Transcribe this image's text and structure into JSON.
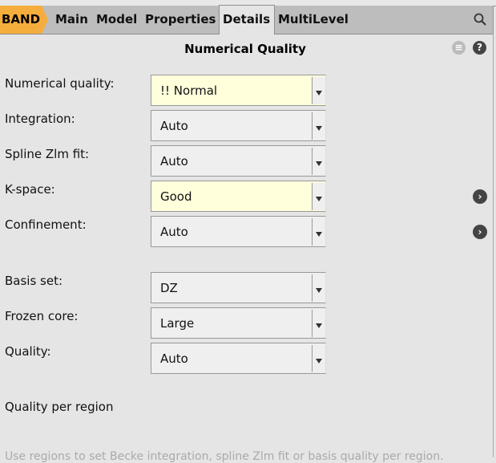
{
  "tabs": {
    "brand": "BAND",
    "items": [
      "Main",
      "Model",
      "Properties",
      "Details",
      "MultiLevel"
    ],
    "active": "Details"
  },
  "panel": {
    "title": "Numerical Quality"
  },
  "fields": [
    {
      "label": "Numerical quality:",
      "value": "!! Normal",
      "highlight": true
    },
    {
      "label": "Integration:",
      "value": "Auto",
      "highlight": false
    },
    {
      "label": "Spline Zlm fit:",
      "value": "Auto",
      "highlight": false
    },
    {
      "label": "K-space:",
      "value": "Good",
      "highlight": true,
      "details": true
    },
    {
      "label": "Confinement:",
      "value": "Auto",
      "highlight": false,
      "details": true
    },
    {
      "label": "Basis set:",
      "value": "DZ",
      "highlight": false
    },
    {
      "label": "Frozen core:",
      "value": "Large",
      "highlight": false
    },
    {
      "label": "Quality:",
      "value": "Auto",
      "highlight": false
    }
  ],
  "section": {
    "title": "Quality per region",
    "hint": "Use regions to set Becke integration, spline Zlm fit or basis quality per region."
  },
  "colors": {
    "brand": "#f5ae3e",
    "highlight": "#ffffdc"
  }
}
